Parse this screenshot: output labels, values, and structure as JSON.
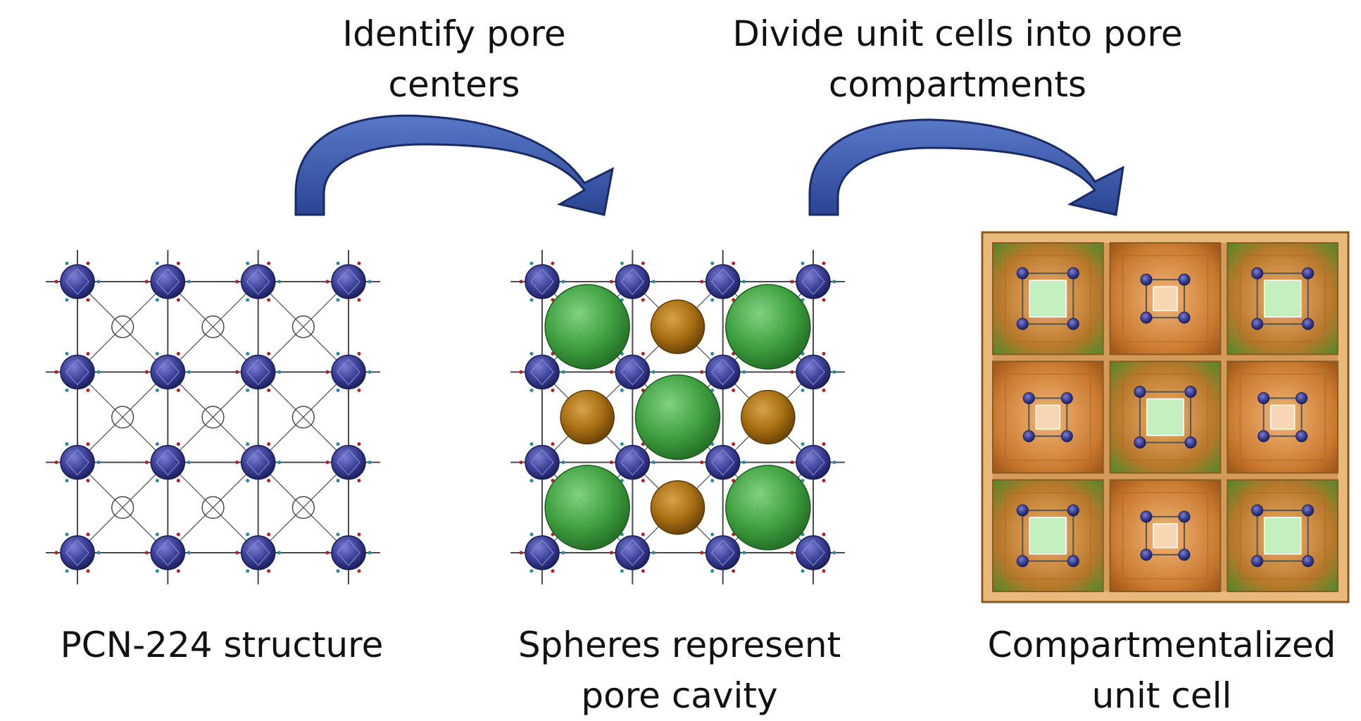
{
  "steps": {
    "step1": "Identify pore centers",
    "step2": "Divide unit cells into pore compartments"
  },
  "panels": {
    "left_caption": "PCN-224 structure",
    "middle_caption": "Spheres represent pore cavity",
    "right_caption": "Compartmentalized unit cell"
  },
  "colors": {
    "arrow": "#2d4c9c",
    "arrow_dark": "#1a2a66",
    "node": "#3a3f94",
    "linker": "#555555",
    "large_sphere": "#2f9a3a",
    "small_sphere": "#b07a1a",
    "box_outer": "#c9843a",
    "green_cube": "#c4f0c0",
    "peach_cube": "#f6d6b4"
  },
  "compartments": [
    [
      "large",
      "small",
      "large"
    ],
    [
      "small",
      "large",
      "small"
    ],
    [
      "large",
      "small",
      "large"
    ]
  ]
}
